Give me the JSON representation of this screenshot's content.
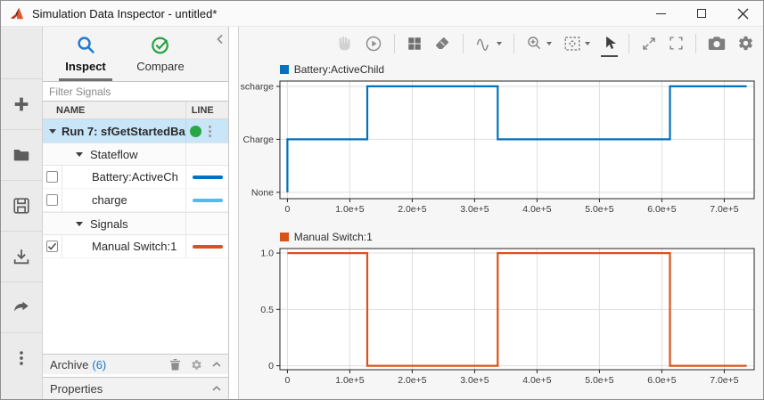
{
  "titlebar": {
    "title": "Simulation Data Inspector - untitled*",
    "icons": [
      "matlab-logo",
      "minimize",
      "maximize",
      "close"
    ]
  },
  "left_toolbar": {
    "icons": [
      "add",
      "open",
      "save",
      "import",
      "export",
      "more-options"
    ]
  },
  "panel": {
    "tabs": [
      {
        "label": "Inspect",
        "active": true,
        "icon": "search-icon",
        "icon_color": "#1d7cd4"
      },
      {
        "label": "Compare",
        "active": false,
        "icon": "compare-check-icon",
        "icon_color": "#27a341"
      }
    ],
    "collapse_icon": "chevron-left",
    "filter_placeholder": "Filter Signals",
    "columns": [
      "NAME",
      "LINE"
    ],
    "run": {
      "label": "Run 7: sfGetStartedBa",
      "status_color": "#28a745",
      "menu_icon": "kebab-menu"
    },
    "rows": [
      {
        "type": "group",
        "label": "Stateflow"
      },
      {
        "type": "signal",
        "label": "Battery:ActiveChild",
        "checked": false,
        "line_color": "#0072bd"
      },
      {
        "type": "signal",
        "label": "charge",
        "checked": false,
        "line_color": "#4dbeee"
      },
      {
        "type": "group",
        "label": "Signals"
      },
      {
        "type": "signal",
        "label": "Manual Switch:1",
        "checked": true,
        "line_color": "#d95319"
      }
    ],
    "archive": {
      "label": "Archive",
      "count": "(6)",
      "count_color": "#1a73c8",
      "icons": [
        "trash",
        "gear",
        "chevron-up"
      ]
    },
    "properties": {
      "label": "Properties",
      "icons": [
        "chevron-up"
      ]
    }
  },
  "chart_toolbar": {
    "icons": [
      "pan-hand",
      "replay",
      "layout-grid",
      "eraser",
      "signal-wave",
      "zoom",
      "fit-to-view",
      "cursor-arrow",
      "expand",
      "fullscreen",
      "camera",
      "gear"
    ],
    "selected": "cursor-arrow",
    "disabled": [
      "pan-hand"
    ]
  },
  "chart_data": [
    {
      "type": "line",
      "title": "Battery:ActiveChild",
      "line_color": "#0072bd",
      "x": [
        0,
        0,
        128000,
        128000,
        337000,
        337000,
        613000,
        613000,
        736000
      ],
      "y": [
        0,
        1,
        1,
        2,
        2,
        1,
        1,
        2,
        2
      ],
      "xlim": [
        -12000,
        748000
      ],
      "ylim": [
        -0.12,
        2.1
      ],
      "x_ticks": [
        {
          "v": 0,
          "label": "0"
        },
        {
          "v": 100000,
          "label": "1.0e+5"
        },
        {
          "v": 200000,
          "label": "2.0e+5"
        },
        {
          "v": 300000,
          "label": "3.0e+5"
        },
        {
          "v": 400000,
          "label": "4.0e+5"
        },
        {
          "v": 500000,
          "label": "5.0e+5"
        },
        {
          "v": 600000,
          "label": "6.0e+5"
        },
        {
          "v": 700000,
          "label": "7.0e+5"
        }
      ],
      "y_ticks": [
        {
          "v": 0,
          "label": "None"
        },
        {
          "v": 1,
          "label": "Charge"
        },
        {
          "v": 2,
          "label": "Discharge"
        }
      ],
      "grid": true,
      "legend_position": "top-left"
    },
    {
      "type": "line",
      "title": "Manual Switch:1",
      "line_color": "#d95319",
      "x": [
        0,
        128000,
        128000,
        337000,
        337000,
        613000,
        613000,
        736000
      ],
      "y": [
        1,
        1,
        0,
        0,
        1,
        1,
        0,
        0
      ],
      "xlim": [
        -12000,
        748000
      ],
      "ylim": [
        -0.035,
        1.04
      ],
      "x_ticks": [
        {
          "v": 0,
          "label": "0"
        },
        {
          "v": 100000,
          "label": "1.0e+5"
        },
        {
          "v": 200000,
          "label": "2.0e+5"
        },
        {
          "v": 300000,
          "label": "3.0e+5"
        },
        {
          "v": 400000,
          "label": "4.0e+5"
        },
        {
          "v": 500000,
          "label": "5.0e+5"
        },
        {
          "v": 600000,
          "label": "6.0e+5"
        },
        {
          "v": 700000,
          "label": "7.0e+5"
        }
      ],
      "y_ticks": [
        {
          "v": 0,
          "label": "0"
        },
        {
          "v": 0.5,
          "label": "0.5"
        },
        {
          "v": 1,
          "label": "1.0"
        }
      ],
      "grid": true,
      "legend_position": "top-left"
    }
  ]
}
